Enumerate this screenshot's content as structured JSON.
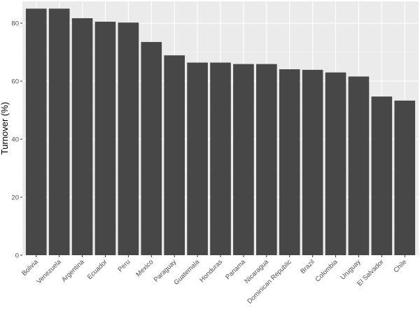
{
  "chart_data": {
    "type": "bar",
    "title": "",
    "xlabel": "",
    "ylabel": "Turnover (%)",
    "ylim": [
      0,
      87.5
    ],
    "yticks": [
      0,
      20,
      40,
      60,
      80
    ],
    "grid": true,
    "categories": [
      "Bolivia",
      "Venezuela",
      "Argentina",
      "Ecuador",
      "Peru",
      "Mexico",
      "Paraguay",
      "Guatemala",
      "Honduras",
      "Panama",
      "Nicaragua",
      "Dominican Republic",
      "Brazil",
      "Colombia",
      "Uruguay",
      "El Salvador",
      "Chile"
    ],
    "values": [
      85.0,
      85.0,
      81.7,
      80.5,
      80.2,
      73.5,
      68.9,
      66.4,
      66.4,
      65.9,
      65.9,
      64.1,
      63.9,
      63.0,
      61.6,
      54.7,
      53.3
    ],
    "colors": {
      "bar": "#474747",
      "panel": "#ebebeb",
      "grid_major": "#ffffff",
      "grid_minor": "#f5f5f5"
    }
  }
}
